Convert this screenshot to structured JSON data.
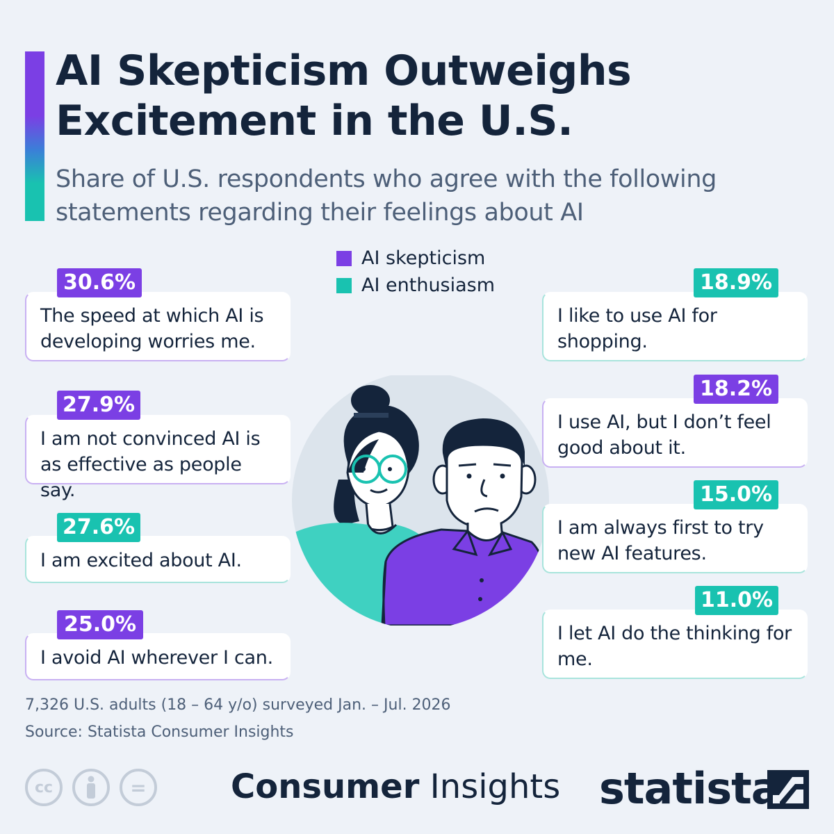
{
  "header": {
    "title": "AI Skepticism Outweighs Excitement in the U.S.",
    "subtitle": "Share of U.S. respondents who agree with the following statements regarding their feelings about AI"
  },
  "legend": [
    {
      "label": "AI skepticism",
      "color": "#7b3fe4"
    },
    {
      "label": "AI enthusiasm",
      "color": "#19c2b0"
    }
  ],
  "colors": {
    "skepticism": "#7b3fe4",
    "enthusiasm": "#19c2b0",
    "title": "#14243b",
    "background": "#eef2f8"
  },
  "chart_data": {
    "type": "bar",
    "title": "AI Skepticism Outweighs Excitement in the U.S.",
    "unit": "%",
    "series": [
      {
        "name": "AI skepticism",
        "points": [
          {
            "statement": "The speed at which AI is developing worries me.",
            "value": 30.6,
            "label": "30.6%"
          },
          {
            "statement": "I am not convinced AI is as effective as people say.",
            "value": 27.9,
            "label": "27.9%"
          },
          {
            "statement": "I avoid AI wherever I can.",
            "value": 25.0,
            "label": "25.0%"
          },
          {
            "statement": "I use AI, but I don’t feel good about it.",
            "value": 18.2,
            "label": "18.2%"
          }
        ]
      },
      {
        "name": "AI enthusiasm",
        "points": [
          {
            "statement": "I am excited about AI.",
            "value": 27.6,
            "label": "27.6%"
          },
          {
            "statement": "I like to use AI for shopping.",
            "value": 18.9,
            "label": "18.9%"
          },
          {
            "statement": "I am always first to try new AI features.",
            "value": 15.0,
            "label": "15.0%"
          },
          {
            "statement": "I let AI do the thinking for me.",
            "value": 11.0,
            "label": "11.0%"
          }
        ]
      }
    ]
  },
  "left_cards": [
    {
      "statement": "The speed at which AI is developing worries me.",
      "label": "30.6%",
      "group": "skeptic"
    },
    {
      "statement": "I am not convinced AI is as effective as people say.",
      "label": "27.9%",
      "group": "skeptic"
    },
    {
      "statement": "I am excited about AI.",
      "label": "27.6%",
      "group": "enthus"
    },
    {
      "statement": "I avoid AI wherever I can.",
      "label": "25.0%",
      "group": "skeptic"
    }
  ],
  "right_cards": [
    {
      "statement": "I like to use AI for shopping.",
      "label": "18.9%",
      "group": "enthus"
    },
    {
      "statement": "I use AI, but I don’t feel good about it.",
      "label": "18.2%",
      "group": "skeptic"
    },
    {
      "statement": "I am always first to try new AI features.",
      "label": "15.0%",
      "group": "enthus"
    },
    {
      "statement": "I let AI do the thinking for me.",
      "label": "11.0%",
      "group": "enthus"
    }
  ],
  "footer": {
    "survey_note": "7,326 U.S. adults (18 – 64 y/o) surveyed Jan. – Jul. 2026",
    "source": "Source: Statista Consumer Insights",
    "brand_bold": "Consumer",
    "brand_light": " Insights",
    "logo_text": "statista",
    "license_icons": [
      "cc-icon",
      "attribution-icon",
      "no-derivatives-icon"
    ],
    "license_glyphs": [
      "cc",
      "",
      "="
    ]
  }
}
